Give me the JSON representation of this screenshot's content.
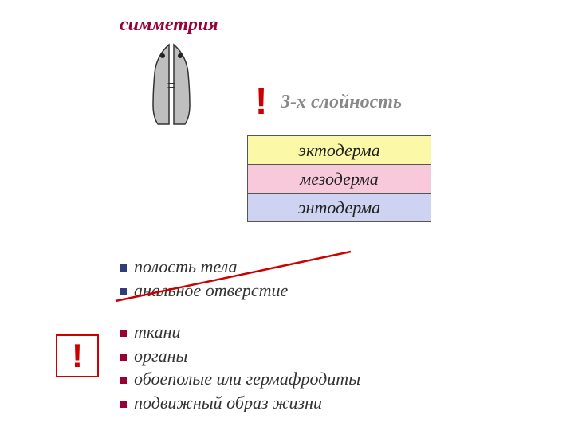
{
  "symmetry_title": "симметрия",
  "equals_sign": "=",
  "exclaim": "!",
  "layers_title": "3-х  слойность",
  "layers": {
    "rows": [
      {
        "label": "эктодерма",
        "bg": "#fbf9a8"
      },
      {
        "label": "мезодерма",
        "bg": "#f7c9db"
      },
      {
        "label": "энтодерма",
        "bg": "#cdd3f0"
      }
    ],
    "border_color": "#555555",
    "text_color": "#222222",
    "fontsize": 22
  },
  "group1": {
    "items": [
      "полость тела",
      "анальное отверстие"
    ],
    "bullet_color": "#2f3d7a",
    "crossed_out": true,
    "cross_color": "#cc0000"
  },
  "group2": {
    "items": [
      "ткани",
      "органы",
      "обоеполые или гермафродиты",
      "подвижный образ жизни"
    ],
    "bullet_color": "#990033"
  },
  "worm": {
    "body_fill": "#bfbfbf",
    "body_stroke": "#333333",
    "eye_color": "#222222"
  },
  "colors": {
    "title": "#990033",
    "excl": "#cc0000",
    "layers_title": "#888888",
    "body_text": "#333333",
    "background": "#ffffff"
  }
}
